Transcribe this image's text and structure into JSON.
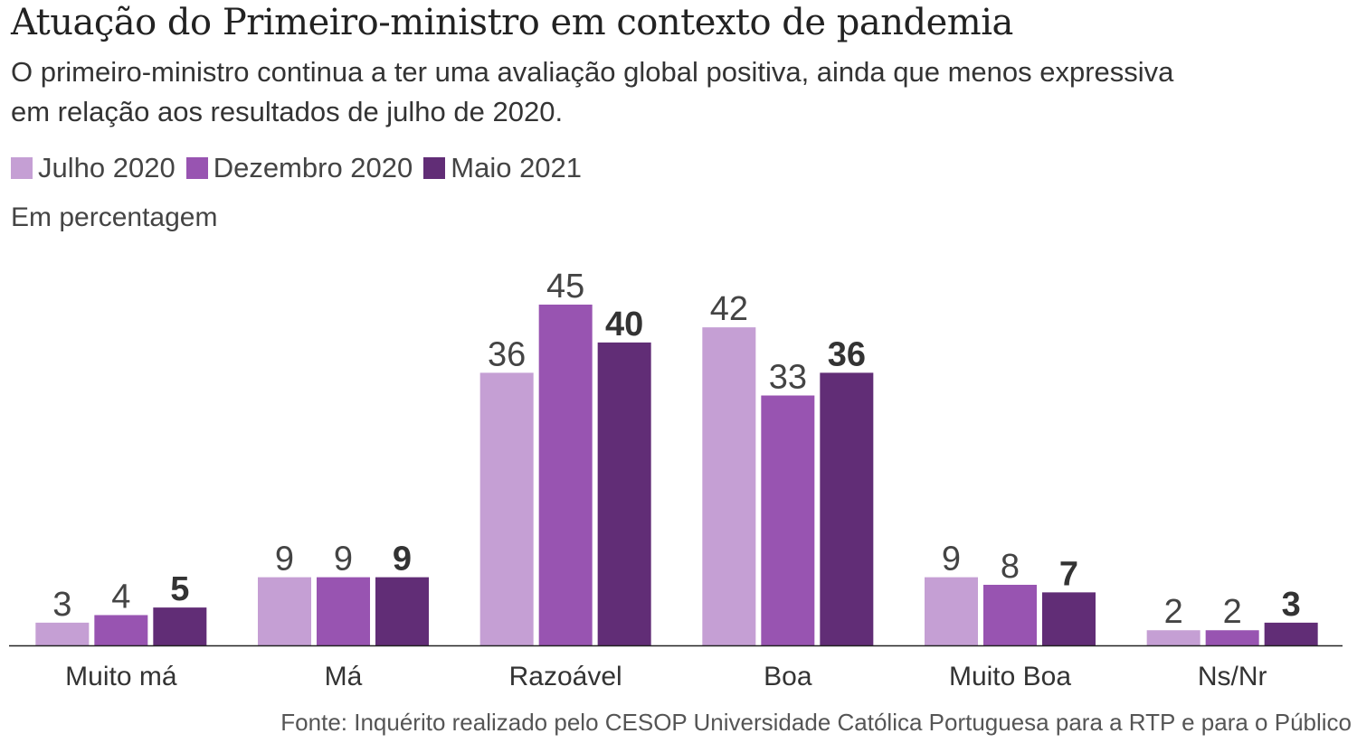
{
  "chart_data": {
    "type": "bar",
    "title": "Atuação do Primeiro-ministro em contexto de pandemia",
    "subtitle": "O primeiro-ministro continua a ter uma avaliação global positiva, ainda que menos expressiva em relação aos resultados de julho de 2020.",
    "unit_note": "Em percentagem",
    "xlabel": "",
    "ylabel": "",
    "ylim": [
      0,
      45
    ],
    "grid": false,
    "legend_position": "top-left",
    "categories": [
      "Muito má",
      "Má",
      "Razoável",
      "Boa",
      "Muito Boa",
      "Ns/Nr"
    ],
    "series": [
      {
        "name": "Julho 2020",
        "color": "#c59fd4",
        "values": [
          3,
          9,
          36,
          42,
          9,
          2
        ]
      },
      {
        "name": "Dezembro 2020",
        "color": "#9854b1",
        "values": [
          4,
          9,
          45,
          33,
          8,
          2
        ]
      },
      {
        "name": "Maio 2021",
        "color": "#612d76",
        "values": [
          5,
          9,
          40,
          36,
          7,
          3
        ],
        "bold_labels": true
      }
    ],
    "source": "Fonte: Inquérito realizado pelo CESOP Universidade Católica Portuguesa para a RTP e para o Público"
  }
}
